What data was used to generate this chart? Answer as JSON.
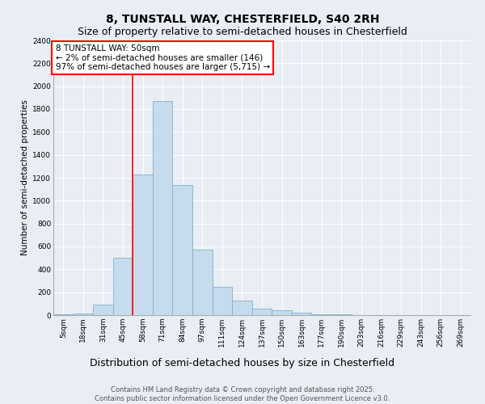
{
  "title": "8, TUNSTALL WAY, CHESTERFIELD, S40 2RH",
  "subtitle": "Size of property relative to semi-detached houses in Chesterfield",
  "xlabel": "Distribution of semi-detached houses by size in Chesterfield",
  "ylabel": "Number of semi-detached properties",
  "bin_labels": [
    "5sqm",
    "18sqm",
    "31sqm",
    "45sqm",
    "58sqm",
    "71sqm",
    "84sqm",
    "97sqm",
    "111sqm",
    "124sqm",
    "137sqm",
    "150sqm",
    "163sqm",
    "177sqm",
    "190sqm",
    "203sqm",
    "216sqm",
    "229sqm",
    "243sqm",
    "256sqm",
    "269sqm"
  ],
  "bar_heights": [
    5,
    15,
    90,
    500,
    1230,
    1870,
    1140,
    570,
    245,
    130,
    60,
    40,
    20,
    10,
    5,
    3,
    2,
    1,
    1,
    0,
    0
  ],
  "bar_color": "#c6dcec",
  "bar_edgecolor": "#7eb0cc",
  "annotation_box_text": "8 TUNSTALL WAY: 50sqm\n← 2% of semi-detached houses are smaller (146)\n97% of semi-detached houses are larger (5,715) →",
  "annotation_box_color": "white",
  "annotation_box_edgecolor": "red",
  "vline_x": 3.5,
  "vline_color": "red",
  "ylim": [
    0,
    2400
  ],
  "yticks": [
    0,
    200,
    400,
    600,
    800,
    1000,
    1200,
    1400,
    1600,
    1800,
    2000,
    2200,
    2400
  ],
  "footer_text": "Contains HM Land Registry data © Crown copyright and database right 2025.\nContains public sector information licensed under the Open Government Licence v3.0.",
  "bg_color": "#e8eef4",
  "grid_color": "white",
  "title_fontsize": 10,
  "subtitle_fontsize": 9,
  "xlabel_fontsize": 9,
  "ylabel_fontsize": 7.5,
  "tick_fontsize": 6.5,
  "footer_fontsize": 6,
  "annotation_fontsize": 7.5
}
